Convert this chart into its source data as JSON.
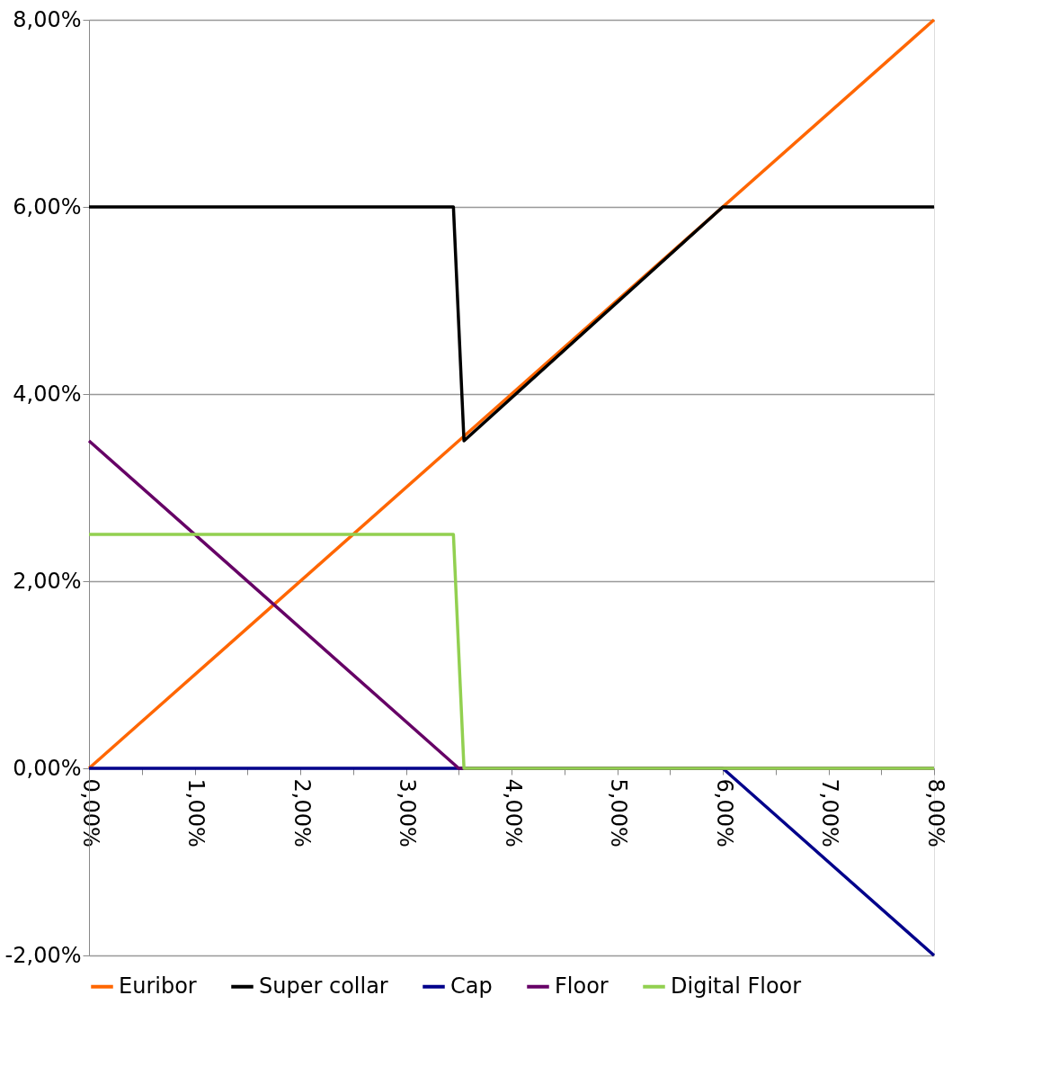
{
  "chart_data": {
    "type": "line",
    "xlim": [
      0,
      8
    ],
    "xticks": [
      {
        "value": 0,
        "label": "0,00%"
      },
      {
        "value": 0.5,
        "label": null
      },
      {
        "value": 1,
        "label": "1,00%"
      },
      {
        "value": 1.5,
        "label": null
      },
      {
        "value": 2,
        "label": "2,00%"
      },
      {
        "value": 2.5,
        "label": null
      },
      {
        "value": 3,
        "label": "3,00%"
      },
      {
        "value": 3.5,
        "label": null
      },
      {
        "value": 4,
        "label": "4,00%"
      },
      {
        "value": 4.5,
        "label": null
      },
      {
        "value": 5,
        "label": "5,00%"
      },
      {
        "value": 5.5,
        "label": null
      },
      {
        "value": 6,
        "label": "6,00%"
      },
      {
        "value": 6.5,
        "label": null
      },
      {
        "value": 7,
        "label": "7,00%"
      },
      {
        "value": 7.5,
        "label": null
      },
      {
        "value": 8,
        "label": "8,00%"
      }
    ],
    "ylim": [
      -2,
      8
    ],
    "yticks": [
      {
        "value": -2,
        "label": "-2,00%"
      },
      {
        "value": 0,
        "label": "0,00%"
      },
      {
        "value": 2,
        "label": "2,00%"
      },
      {
        "value": 4,
        "label": "4,00%"
      },
      {
        "value": 6,
        "label": "6,00%"
      },
      {
        "value": 8,
        "label": "8,00%"
      }
    ],
    "grid": "y",
    "legend": "bottom",
    "marker": "none",
    "line_style": "solid",
    "series": [
      {
        "name": "Euribor",
        "color": "#ff6600",
        "x": [
          0,
          8
        ],
        "values": [
          0,
          8
        ]
      },
      {
        "name": "Super collar",
        "color": "#000000",
        "x": [
          0,
          3.45,
          3.55,
          6,
          8
        ],
        "values": [
          6,
          6,
          3.5,
          6,
          6
        ]
      },
      {
        "name": "Cap",
        "color": "#00008b",
        "x": [
          0,
          6,
          8
        ],
        "values": [
          0,
          0,
          -2
        ]
      },
      {
        "name": "Floor",
        "color": "#660066",
        "x": [
          0,
          3.5,
          8
        ],
        "values": [
          3.5,
          0,
          0
        ]
      },
      {
        "name": "Digital Floor",
        "color": "#92d050",
        "x": [
          0,
          3.45,
          3.55,
          8
        ],
        "values": [
          2.5,
          2.5,
          0,
          0
        ]
      }
    ]
  }
}
